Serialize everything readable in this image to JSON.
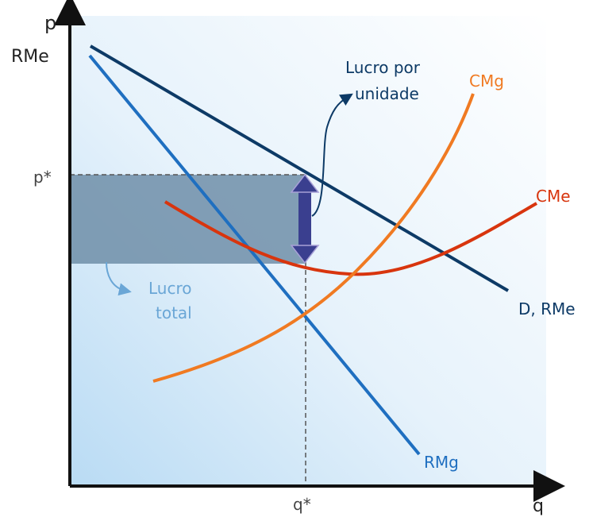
{
  "axes": {
    "y_label": "p",
    "y_sublabel": "RMe",
    "x_label": "q"
  },
  "ticks": {
    "p_star": "p*",
    "q_star": "q*"
  },
  "curves": {
    "demand": "D, RMe",
    "marginal_revenue": "RMg",
    "marginal_cost": "CMg",
    "average_cost": "CMe"
  },
  "annotations": {
    "unit_profit_line1": "Lucro por",
    "unit_profit_line2": "unidade",
    "total_profit_line1": "Lucro",
    "total_profit_line2": "total"
  },
  "colors": {
    "demand": "#0d3a66",
    "marginal_revenue": "#1f6fc0",
    "marginal_cost": "#f07a22",
    "average_cost": "#d8350e",
    "profit_area": "#6f8ea8",
    "unit_arrow": "#3a3f8f",
    "total_label": "#6aa6d6",
    "axis": "#111111",
    "tick_text": "#444444"
  }
}
